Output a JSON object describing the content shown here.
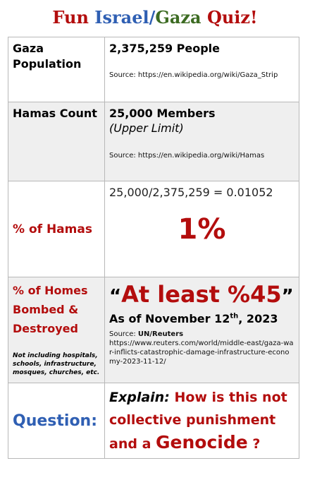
{
  "title": {
    "part1": "Fun",
    "part2": "Israel",
    "slash": "/",
    "part3": "Gaza",
    "part4": "Quiz!"
  },
  "colors": {
    "red": "#b30d0d",
    "blue": "#2f5fb3",
    "green": "#3c6b22",
    "shade": "#efefef"
  },
  "rows": {
    "population": {
      "label_line1": "Gaza",
      "label_line2": "Population",
      "value": "2,375,259 People",
      "source": "Source: https://en.wikipedia.org/wiki/Gaza_Strip"
    },
    "hamas": {
      "label": "Hamas Count",
      "value": "25,000 Members",
      "qualifier": "(Upper Limit)",
      "source": "Source: https://en.wikipedia.org/wiki/Hamas"
    },
    "percent_hamas": {
      "label": "% of Hamas",
      "equation": "25,000/2,375,259 = 0.01052",
      "result": "1%"
    },
    "homes": {
      "label_line1": "% of Homes",
      "label_line2": "Bombed &",
      "label_line3": "Destroyed",
      "note": "Not including hospitals, schools, infrastructure, mosques, churches, etc.",
      "quote_open": "“",
      "headline": "At least %45",
      "quote_close": "”",
      "date_prefix": "As of November 12",
      "date_sup": "th",
      "date_suffix": ", 2023",
      "source_label": "Source: ",
      "source_name": "UN/Reuters",
      "source_url": "https://www.reuters.com/world/middle-east/gaza-war-inflicts-catastrophic-damage-infrastructure-economy-2023-11-12/"
    },
    "question": {
      "label": "Question:",
      "explain": "Explain:",
      "text_part1": "How is this not collective punishment and a",
      "genocide": "Genocide",
      "qmark": "?"
    }
  }
}
